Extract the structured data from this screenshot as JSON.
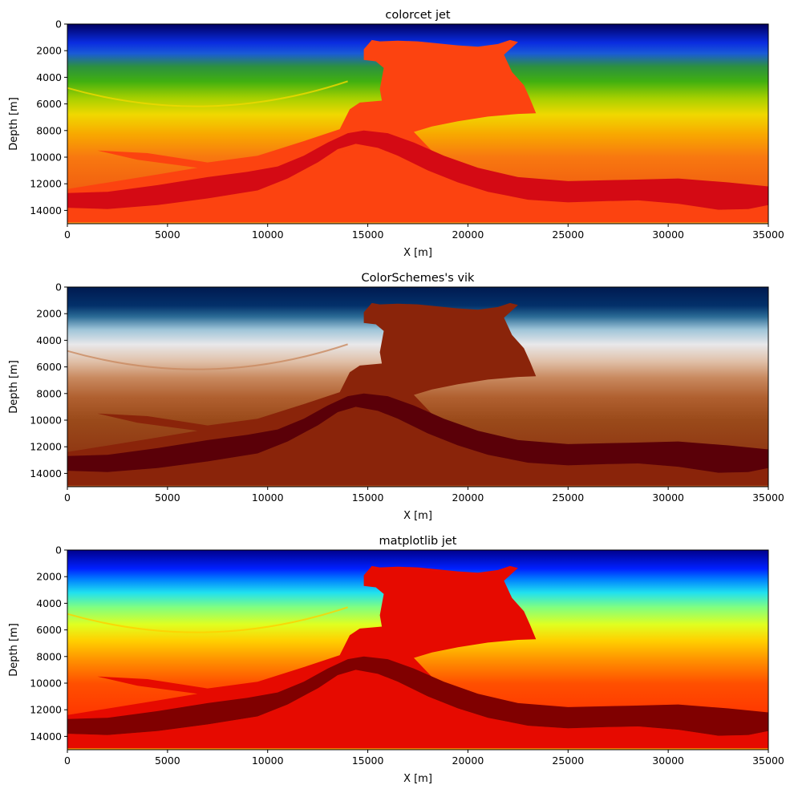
{
  "chart_data": [
    {
      "type": "heatmap",
      "title": "colorcet jet",
      "xlabel": "X [m]",
      "ylabel": "Depth [m]",
      "xlim": [
        0,
        35000
      ],
      "ylim": [
        15000,
        0
      ],
      "xticks": [
        "0",
        "5000",
        "10000",
        "15000",
        "20000",
        "25000",
        "30000",
        "35000"
      ],
      "yticks": [
        "0",
        "2000",
        "4000",
        "6000",
        "8000",
        "10000",
        "12000",
        "14000"
      ],
      "colors": {
        "stops": [
          "#000060",
          "#0a2ce0",
          "#1a5ad8",
          "#2c9040",
          "#40b010",
          "#a8d000",
          "#f0d800",
          "#f8a800",
          "#f87810",
          "#f05a10"
        ],
        "salt": "#fc4310",
        "band": "#d40a14",
        "base": "#f8a020"
      }
    },
    {
      "type": "heatmap",
      "title": "ColorSchemes's vik",
      "xlabel": "X [m]",
      "ylabel": "Depth [m]",
      "xlim": [
        0,
        35000
      ],
      "ylim": [
        15000,
        0
      ],
      "xticks": [
        "0",
        "5000",
        "10000",
        "15000",
        "20000",
        "25000",
        "30000",
        "35000"
      ],
      "yticks": [
        "0",
        "2000",
        "4000",
        "6000",
        "8000",
        "10000",
        "12000",
        "14000"
      ],
      "colors": {
        "stops": [
          "#001a50",
          "#03306a",
          "#2a6a95",
          "#9ec4d8",
          "#e8e8ea",
          "#e0c0a8",
          "#c98a60",
          "#b06030",
          "#9a4a1a",
          "#8e3412"
        ],
        "salt": "#8a240a",
        "band": "#5a0008",
        "base": "#b05020"
      }
    },
    {
      "type": "heatmap",
      "title": "matplotlib jet",
      "xlabel": "X [m]",
      "ylabel": "Depth [m]",
      "xlim": [
        0,
        35000
      ],
      "ylim": [
        15000,
        0
      ],
      "xticks": [
        "0",
        "5000",
        "10000",
        "15000",
        "20000",
        "25000",
        "30000",
        "35000"
      ],
      "yticks": [
        "0",
        "2000",
        "4000",
        "6000",
        "8000",
        "10000",
        "12000",
        "14000"
      ],
      "colors": {
        "stops": [
          "#00008c",
          "#0020ff",
          "#0080ff",
          "#20e0f0",
          "#80ff80",
          "#e0ff20",
          "#ffd000",
          "#ff9000",
          "#ff5000",
          "#ff3000"
        ],
        "salt": "#e60a00",
        "band": "#800000",
        "base": "#ffb000"
      }
    }
  ]
}
